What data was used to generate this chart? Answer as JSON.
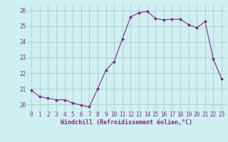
{
  "x": [
    0,
    1,
    2,
    3,
    4,
    5,
    6,
    7,
    8,
    9,
    10,
    11,
    12,
    13,
    14,
    15,
    16,
    17,
    18,
    19,
    20,
    21,
    22,
    23
  ],
  "y": [
    20.9,
    20.5,
    20.4,
    20.3,
    20.3,
    20.1,
    19.95,
    19.85,
    21.0,
    22.2,
    22.75,
    24.2,
    25.6,
    25.85,
    25.95,
    25.5,
    25.4,
    25.45,
    25.45,
    25.1,
    24.9,
    25.3,
    22.9,
    21.65
  ],
  "line_color": "#7b2d8b",
  "marker": "D",
  "marker_size": 2.0,
  "bg_color": "#cff0f0",
  "grid_color": "#b0c8c8",
  "xlabel": "Windchill (Refroidissement éolien,°C)",
  "xlabel_color": "#7b2d8b",
  "ylabel_ticks": [
    20,
    21,
    22,
    23,
    24,
    25,
    26
  ],
  "xtick_labels": [
    "0",
    "1",
    "2",
    "3",
    "4",
    "5",
    "6",
    "7",
    "8",
    "9",
    "10",
    "11",
    "12",
    "13",
    "14",
    "15",
    "16",
    "17",
    "18",
    "19",
    "20",
    "21",
    "22",
    "23"
  ],
  "ylim": [
    19.6,
    26.4
  ],
  "xlim": [
    -0.5,
    23.5
  ],
  "tick_color": "#7b2d8b",
  "tick_label_color": "#7b2d8b",
  "tick_fontsize": 5.5,
  "xlabel_fontsize": 6.0,
  "linewidth": 0.8
}
